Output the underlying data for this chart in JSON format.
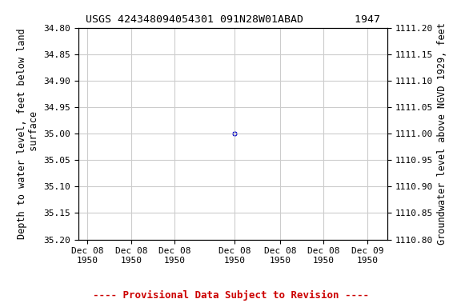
{
  "title": "USGS 424348094054301 091N28W01ABAD        1947",
  "ylabel_left": "Depth to water level, feet below land\n surface",
  "ylabel_right": "Groundwater level above NGVD 1929, feet",
  "ylim_left": [
    35.2,
    34.8
  ],
  "ylim_right": [
    1110.8,
    1111.2
  ],
  "yticks_left": [
    34.8,
    34.85,
    34.9,
    34.95,
    35.0,
    35.05,
    35.1,
    35.15,
    35.2
  ],
  "yticks_right": [
    1110.8,
    1110.85,
    1110.9,
    1110.95,
    1111.0,
    1111.05,
    1111.1,
    1111.15,
    1111.2
  ],
  "ytick_labels_left": [
    "34.80",
    "34.85",
    "34.90",
    "34.95",
    "35.00",
    "35.05",
    "35.10",
    "35.15",
    "35.20"
  ],
  "ytick_labels_right": [
    "1110.80",
    "1110.85",
    "1110.90",
    "1110.95",
    "1111.00",
    "1111.05",
    "1111.10",
    "1111.15",
    "1111.20"
  ],
  "data_x": [
    0.43
  ],
  "data_y": [
    35.0
  ],
  "point_color": "#0000cc",
  "point_marker": "o",
  "point_size": 3.5,
  "xlim": [
    0.0,
    0.85
  ],
  "xtick_positions": [
    0.025,
    0.145,
    0.265,
    0.43,
    0.555,
    0.675,
    0.795
  ],
  "xtick_labels": [
    "Dec 08\n1950",
    "Dec 08\n1950",
    "Dec 08\n1950",
    "Dec 08\n1950",
    "Dec 08\n1950",
    "Dec 08\n1950",
    "Dec 09\n1950"
  ],
  "grid_color": "#cccccc",
  "background_color": "#ffffff",
  "provisional_text": "---- Provisional Data Subject to Revision ----",
  "provisional_color": "#cc0000",
  "font_family": "monospace",
  "title_fontsize": 9.5,
  "axis_label_fontsize": 8.5,
  "tick_fontsize": 8,
  "provisional_fontsize": 9
}
